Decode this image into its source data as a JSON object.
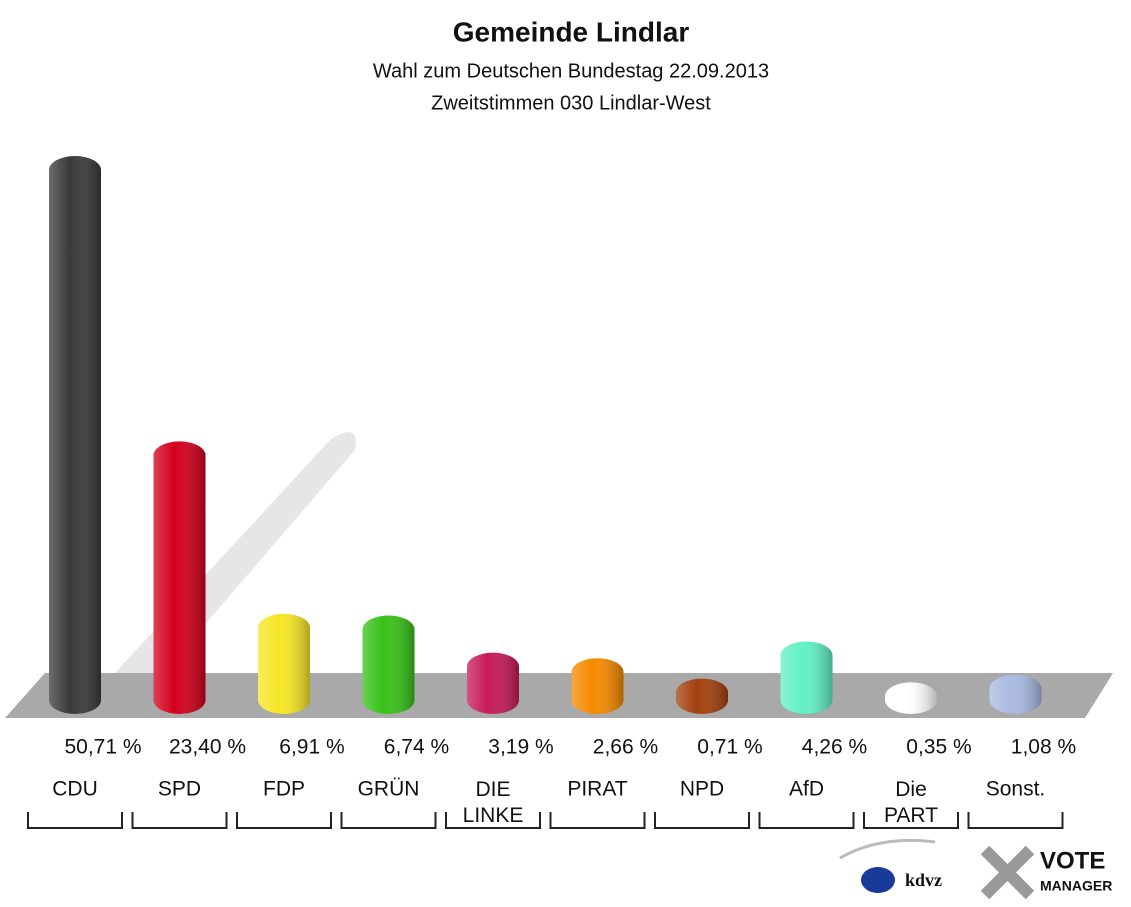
{
  "chart_data": {
    "type": "bar",
    "title": "Gemeinde Lindlar",
    "subtitle": [
      "Wahl zum Deutschen Bundestag 22.09.2013",
      "Zweitstimmen 030 Lindlar-West"
    ],
    "categories": [
      "CDU",
      "SPD",
      "FDP",
      "GRÜN",
      "DIE LINKE",
      "PIRAT",
      "NPD",
      "AfD",
      "Die PART",
      "Sonst."
    ],
    "values": [
      50.71,
      23.4,
      6.91,
      6.74,
      3.19,
      2.66,
      0.71,
      4.26,
      0.35,
      1.08
    ],
    "value_labels": [
      "50,71 %",
      "23,40 %",
      "6,91 %",
      "6,74 %",
      "3,19 %",
      "2,66 %",
      "0,71 %",
      "4,26 %",
      "0,35 %",
      "1,08 %"
    ],
    "colors": [
      "#3a3a3a",
      "#d3001c",
      "#f6e624",
      "#38c118",
      "#c61a5a",
      "#f58a00",
      "#a3400e",
      "#62f1c4",
      "#ffffff",
      "#a9b9e2"
    ],
    "logos": [
      "kdvz",
      "VOTE",
      "MANAGER"
    ]
  }
}
